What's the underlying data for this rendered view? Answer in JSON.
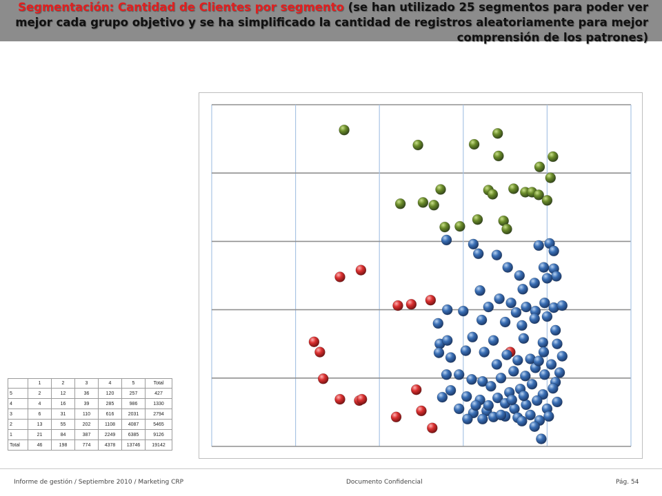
{
  "slide": {
    "title_highlight": "Segmentación: Cantidad de Clientes por segmento",
    "title_rest": " (se han utilizado 25 segmentos para poder ver mejor cada grupo objetivo y se ha simplificado la cantidad de registros aleatoriamente para mejor comprensión de los patrones)"
  },
  "footer": {
    "left": "Informe de gestión / Septiembre 2010 / Marketing CRP",
    "center": "Documento Confidencial",
    "right": "Pág. 54"
  },
  "table": {
    "header": [
      "",
      "1",
      "2",
      "3",
      "4",
      "5",
      "Total"
    ],
    "rows": [
      [
        "5",
        "2",
        "12",
        "36",
        "120",
        "257",
        "427"
      ],
      [
        "4",
        "4",
        "16",
        "39",
        "285",
        "986",
        "1330"
      ],
      [
        "3",
        "6",
        "31",
        "110",
        "616",
        "2031",
        "2794"
      ],
      [
        "2",
        "13",
        "55",
        "202",
        "1108",
        "4087",
        "5465"
      ],
      [
        "1",
        "21",
        "84",
        "387",
        "2249",
        "6385",
        "9126"
      ],
      [
        "Total",
        "46",
        "198",
        "774",
        "4378",
        "13746",
        "19142"
      ]
    ]
  },
  "chart_data": {
    "type": "scatter",
    "xlim": [
      0,
      5
    ],
    "ylim": [
      0,
      5
    ],
    "grid": true,
    "colors": {
      "green": "#6b8c2a",
      "red": "#d93030",
      "blue": "#3a6fb5"
    },
    "series": [
      {
        "color": "green",
        "points": [
          [
            1.58,
            4.63
          ],
          [
            2.46,
            4.41
          ],
          [
            3.13,
            4.42
          ],
          [
            3.41,
            4.58
          ],
          [
            3.42,
            4.25
          ],
          [
            4.07,
            4.24
          ],
          [
            3.91,
            4.09
          ],
          [
            4.04,
            3.93
          ],
          [
            2.73,
            3.76
          ],
          [
            2.25,
            3.55
          ],
          [
            2.52,
            3.57
          ],
          [
            2.65,
            3.53
          ],
          [
            3.3,
            3.75
          ],
          [
            3.35,
            3.69
          ],
          [
            3.6,
            3.77
          ],
          [
            3.74,
            3.72
          ],
          [
            3.82,
            3.72
          ],
          [
            3.9,
            3.68
          ],
          [
            4.0,
            3.6
          ],
          [
            2.78,
            3.21
          ],
          [
            2.96,
            3.22
          ],
          [
            3.17,
            3.32
          ],
          [
            3.48,
            3.3
          ],
          [
            3.52,
            3.18
          ]
        ]
      },
      {
        "color": "red",
        "points": [
          [
            1.53,
            2.48
          ],
          [
            1.78,
            2.58
          ],
          [
            1.22,
            1.53
          ],
          [
            1.29,
            1.38
          ],
          [
            3.56,
            1.38
          ],
          [
            1.33,
            0.99
          ],
          [
            2.22,
            2.06
          ],
          [
            2.38,
            2.08
          ],
          [
            2.61,
            2.14
          ],
          [
            1.53,
            0.69
          ],
          [
            1.76,
            0.67
          ],
          [
            1.79,
            0.69
          ],
          [
            2.44,
            0.83
          ],
          [
            2.5,
            0.52
          ],
          [
            2.63,
            0.27
          ],
          [
            2.2,
            0.43
          ]
        ]
      },
      {
        "color": "blue",
        "points": [
          [
            2.8,
            3.02
          ],
          [
            3.12,
            2.96
          ],
          [
            3.18,
            2.82
          ],
          [
            3.4,
            2.8
          ],
          [
            3.9,
            2.94
          ],
          [
            4.03,
            2.97
          ],
          [
            4.08,
            2.86
          ],
          [
            3.53,
            2.62
          ],
          [
            3.67,
            2.5
          ],
          [
            3.96,
            2.62
          ],
          [
            4.08,
            2.6
          ],
          [
            4.11,
            2.49
          ],
          [
            3.71,
            2.3
          ],
          [
            3.85,
            2.39
          ],
          [
            4.0,
            2.46
          ],
          [
            3.2,
            2.28
          ],
          [
            3.43,
            2.16
          ],
          [
            3.57,
            2.1
          ],
          [
            3.3,
            2.04
          ],
          [
            3.63,
            1.96
          ],
          [
            3.75,
            2.04
          ],
          [
            3.86,
            1.98
          ],
          [
            3.97,
            2.1
          ],
          [
            4.08,
            2.03
          ],
          [
            4.18,
            2.06
          ],
          [
            2.81,
            2.0
          ],
          [
            3.0,
            1.98
          ],
          [
            3.22,
            1.85
          ],
          [
            3.5,
            1.82
          ],
          [
            3.7,
            1.77
          ],
          [
            3.85,
            1.87
          ],
          [
            4.0,
            1.9
          ],
          [
            4.1,
            1.7
          ],
          [
            2.7,
            1.8
          ],
          [
            3.11,
            1.6
          ],
          [
            3.36,
            1.55
          ],
          [
            3.72,
            1.58
          ],
          [
            3.95,
            1.52
          ],
          [
            4.12,
            1.5
          ],
          [
            2.72,
            1.5
          ],
          [
            2.81,
            1.55
          ],
          [
            3.03,
            1.4
          ],
          [
            2.71,
            1.37
          ],
          [
            2.85,
            1.3
          ],
          [
            3.25,
            1.38
          ],
          [
            3.52,
            1.34
          ],
          [
            3.65,
            1.26
          ],
          [
            3.8,
            1.28
          ],
          [
            3.96,
            1.38
          ],
          [
            4.05,
            1.2
          ],
          [
            4.18,
            1.32
          ],
          [
            2.8,
            1.05
          ],
          [
            2.95,
            1.05
          ],
          [
            3.1,
            0.98
          ],
          [
            3.23,
            0.95
          ],
          [
            3.45,
            1.0
          ],
          [
            3.6,
            1.1
          ],
          [
            3.74,
            1.03
          ],
          [
            3.86,
            1.15
          ],
          [
            3.97,
            1.05
          ],
          [
            4.1,
            0.94
          ],
          [
            3.33,
            0.88
          ],
          [
            3.55,
            0.79
          ],
          [
            3.68,
            0.84
          ],
          [
            3.82,
            0.91
          ],
          [
            3.95,
            0.76
          ],
          [
            4.07,
            0.85
          ],
          [
            2.75,
            0.72
          ],
          [
            2.85,
            0.82
          ],
          [
            3.04,
            0.73
          ],
          [
            3.2,
            0.68
          ],
          [
            3.41,
            0.71
          ],
          [
            3.5,
            0.63
          ],
          [
            3.61,
            0.55
          ],
          [
            3.75,
            0.61
          ],
          [
            3.88,
            0.67
          ],
          [
            4.0,
            0.55
          ],
          [
            4.12,
            0.65
          ],
          [
            2.95,
            0.55
          ],
          [
            3.12,
            0.49
          ],
          [
            3.28,
            0.52
          ],
          [
            3.36,
            0.43
          ],
          [
            3.5,
            0.44
          ],
          [
            3.65,
            0.42
          ],
          [
            3.8,
            0.46
          ],
          [
            3.91,
            0.38
          ],
          [
            4.02,
            0.44
          ],
          [
            3.05,
            0.4
          ],
          [
            3.23,
            0.4
          ],
          [
            3.45,
            0.46
          ],
          [
            3.7,
            0.37
          ],
          [
            3.85,
            0.29
          ],
          [
            3.93,
            0.11
          ],
          [
            3.15,
            0.6
          ],
          [
            3.3,
            0.6
          ],
          [
            3.58,
            0.68
          ],
          [
            3.72,
            0.74
          ],
          [
            4.15,
            1.08
          ],
          [
            3.9,
            1.25
          ],
          [
            3.4,
            1.2
          ]
        ]
      }
    ]
  }
}
